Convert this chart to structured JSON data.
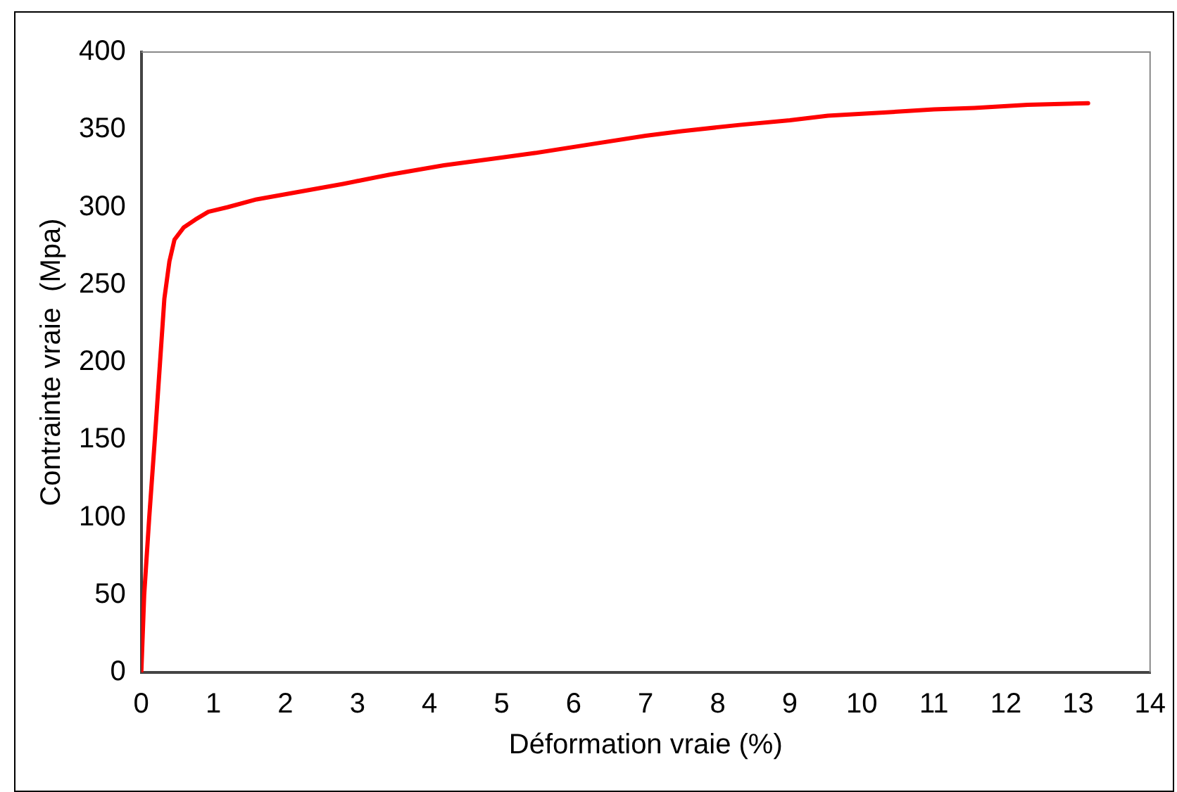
{
  "chart_data": {
    "type": "line",
    "xlabel": "Déformation vraie (%)",
    "ylabel": "Contrainte vraie  (Mpa)",
    "xlim": [
      0,
      14
    ],
    "xticks": [
      0,
      1,
      2,
      3,
      4,
      5,
      6,
      7,
      8,
      9,
      10,
      11,
      12,
      13,
      14
    ],
    "ylim": [
      0,
      400
    ],
    "yticks": [
      0,
      50,
      100,
      150,
      200,
      250,
      300,
      350,
      400
    ],
    "grid": false,
    "legend": false,
    "marker": "none",
    "line_style": "solid",
    "series": [
      {
        "color": "#ff0000",
        "x": [
          0,
          0.04,
          0.11,
          0.19,
          0.26,
          0.32,
          0.39,
          0.46,
          0.59,
          0.75,
          0.93,
          1.2,
          1.6,
          2.2,
          2.8,
          3.45,
          4.2,
          5,
          5.48,
          6.3,
          7,
          7.5,
          8.3,
          9,
          9.53,
          10.3,
          11,
          11.56,
          12.3,
          13.14
        ],
        "values": [
          0,
          50,
          100,
          152,
          200,
          241,
          265,
          279,
          287,
          292,
          297,
          300,
          305,
          310,
          315,
          321,
          327,
          332,
          335,
          341,
          346,
          349,
          353,
          356,
          359,
          361,
          363,
          364,
          366,
          367
        ]
      }
    ]
  }
}
